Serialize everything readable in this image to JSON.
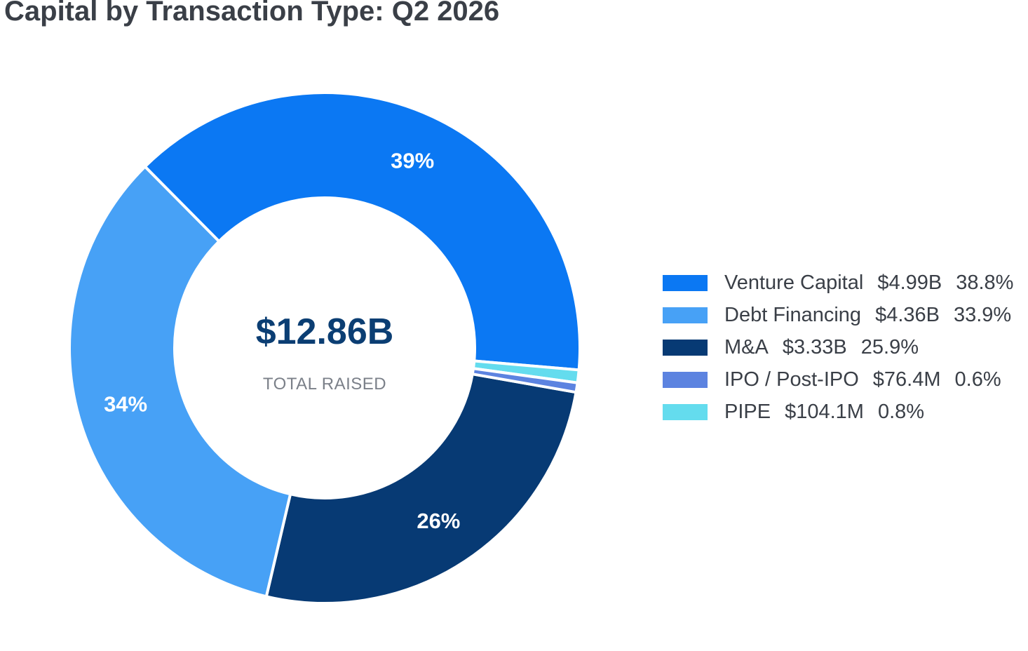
{
  "chart_data": {
    "type": "pie",
    "variant": "donut",
    "title": "Capital by Transaction Type: Q2 2026",
    "center_value": "$12.86B",
    "center_label": "TOTAL RAISED",
    "slices": [
      {
        "name": "M&A",
        "value": 3.33,
        "amount": "$3.33B",
        "percent": "25.9%",
        "label": "26%",
        "color": "#073a74"
      },
      {
        "name": "Debt Financing",
        "value": 4.36,
        "amount": "$4.36B",
        "percent": "33.9%",
        "label": "34%",
        "color": "#47a1f6"
      },
      {
        "name": "Venture Capital",
        "value": 4.99,
        "amount": "$4.99B",
        "percent": "38.8%",
        "label": "39%",
        "color": "#0b78f3"
      },
      {
        "name": "PIPE",
        "value": 0.1041,
        "amount": "$104.1M",
        "percent": "0.8%",
        "label": "",
        "color": "#64dcee"
      },
      {
        "name": "IPO / Post-IPO",
        "value": 0.0764,
        "amount": "$76.4M",
        "percent": "0.6%",
        "label": "",
        "color": "#5c83e0"
      }
    ],
    "legend": [
      {
        "name": "Venture Capital",
        "amount": "$4.99B",
        "percent": "38.8%",
        "color": "#0b78f3"
      },
      {
        "name": "Debt Financing",
        "amount": "$4.36B",
        "percent": "33.9%",
        "color": "#47a1f6"
      },
      {
        "name": "M&A",
        "amount": "$3.33B",
        "percent": "25.9%",
        "color": "#073a74"
      },
      {
        "name": "IPO / Post-IPO",
        "amount": "$76.4M",
        "percent": "0.6%",
        "color": "#5c83e0"
      },
      {
        "name": "PIPE",
        "amount": "$104.1M",
        "percent": "0.8%",
        "color": "#64dcee"
      }
    ],
    "legend_position": "right"
  }
}
